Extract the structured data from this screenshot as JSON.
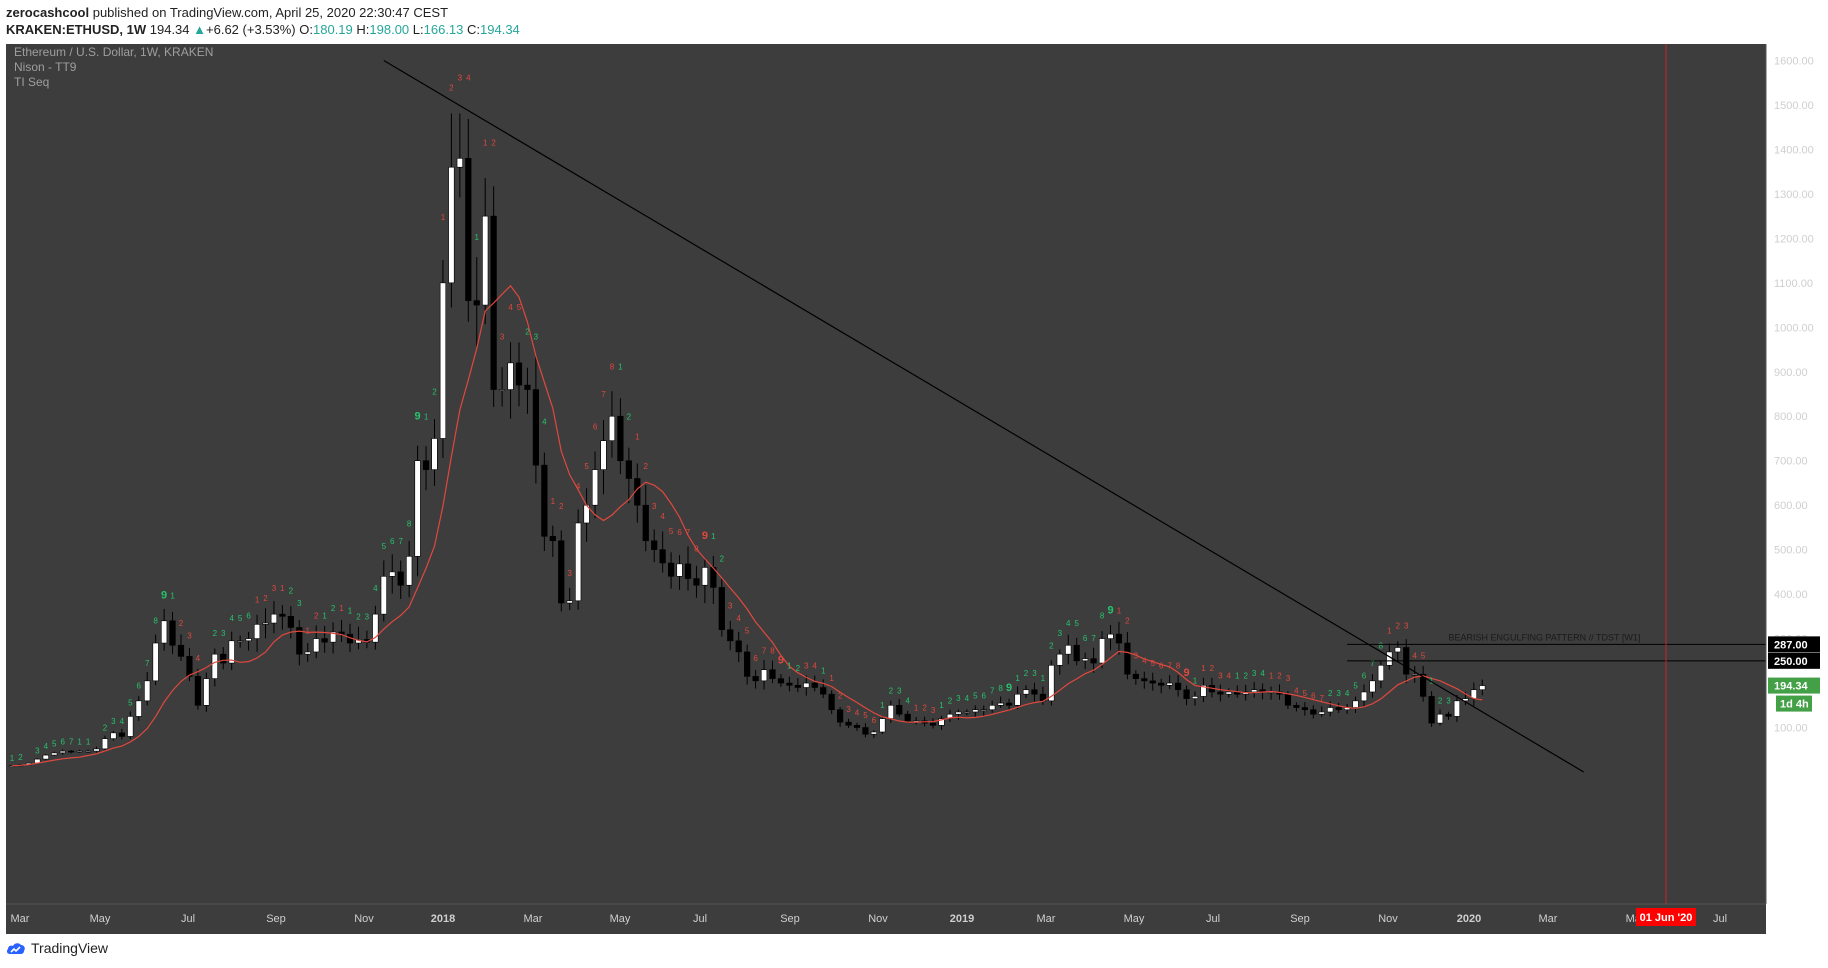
{
  "header": {
    "author": "zerocashcool",
    "published": "published on TradingView.com, April 25, 2020 22:30:47 CEST",
    "symbol": "KRAKEN:ETHUSD, 1W",
    "last": "194.34",
    "change_symbol": "▲",
    "change": "+6.62 (+3.53%)",
    "o_label": "O:",
    "o_value": "180.19",
    "h_label": "H:",
    "h_value": "198.00",
    "l_label": "L:",
    "l_value": "166.13",
    "c_label": "C:",
    "c_value": "194.34"
  },
  "legend": {
    "title": "Ethereum / U.S. Dollar, 1W, KRAKEN",
    "study1": "Nison - TT9",
    "study2": "TI Seq"
  },
  "footer": {
    "brand": "TradingView"
  },
  "colors": {
    "background": "#3d3d3d",
    "up_candle": "#ffffff",
    "down_candle": "#000000",
    "ma_line": "#e0483e",
    "count_green": "#26c26b",
    "count_red": "#e0483e",
    "price_tag": "#43a047",
    "date_tag": "#ff0000"
  },
  "chart_data": {
    "type": "candlestick",
    "title": "Ethereum / U.S. Dollar, 1W, KRAKEN",
    "price_axis": {
      "ticks": [
        "100.00",
        "200.00",
        "300.00",
        "400.00",
        "500.00",
        "600.00",
        "700.00",
        "800.00",
        "900.00",
        "1000.00",
        "1100.00",
        "1200.00",
        "1300.00",
        "1400.00",
        "1500.00",
        "1600.00"
      ],
      "ylim": [
        0,
        1640
      ]
    },
    "time_axis": {
      "ticks": [
        "Mar",
        "May",
        "Jul",
        "Sep",
        "Nov",
        "2018",
        "Mar",
        "May",
        "Jul",
        "Sep",
        "Nov",
        "2019",
        "Mar",
        "May",
        "Jul",
        "Sep",
        "Nov",
        "2020",
        "Mar",
        "May",
        "Jul"
      ],
      "bold": [
        "2018",
        "2019",
        "2020"
      ]
    },
    "closes": [
      14,
      16,
      20,
      29,
      38,
      43,
      47,
      46,
      47,
      47,
      52,
      75,
      88,
      80,
      125,
      160,
      205,
      290,
      340,
      285,
      260,
      215,
      150,
      210,
      265,
      245,
      295,
      295,
      300,
      332,
      335,
      355,
      350,
      325,
      265,
      270,
      300,
      292,
      315,
      310,
      290,
      298,
      292,
      355,
      440,
      450,
      420,
      485,
      700,
      680,
      750,
      1100,
      1360,
      1380,
      1060,
      1050,
      1250,
      860,
      860,
      920,
      870,
      860,
      690,
      530,
      520,
      380,
      385,
      560,
      600,
      680,
      745,
      800,
      700,
      660,
      600,
      520,
      500,
      470,
      440,
      468,
      435,
      420,
      460,
      415,
      320,
      295,
      270,
      215,
      205,
      230,
      210,
      200,
      195,
      190,
      200,
      190,
      175,
      140,
      112,
      105,
      100,
      85,
      90,
      120,
      150,
      130,
      115,
      115,
      110,
      105,
      120,
      130,
      135,
      135,
      140,
      140,
      150,
      155,
      150,
      175,
      185,
      175,
      160,
      240,
      265,
      285,
      250,
      255,
      245,
      300,
      310,
      290,
      220,
      210,
      205,
      200,
      195,
      200,
      185,
      165,
      170,
      195,
      180,
      175,
      180,
      175,
      180,
      185,
      180,
      180,
      175,
      150,
      145,
      140,
      130,
      135,
      145,
      140,
      145,
      160,
      180,
      205,
      240,
      270,
      280,
      220,
      220,
      170,
      110,
      130,
      125,
      160,
      165,
      185,
      194.34
    ],
    "ma_label": "TT9",
    "resistance_line": {
      "from": {
        "week": 44,
        "price": 1600
      },
      "to": {
        "week": 186,
        "price": 0
      }
    },
    "levels": [
      {
        "price": 287.0,
        "label": "287.00"
      },
      {
        "price": 250.0,
        "label": "250.00"
      }
    ],
    "last_price_label": "194.34",
    "timer_label": "1d 4h",
    "annotation": "BEARISH ENGULFING PATTERN // TDST [W1]",
    "event_marker_label": "01 Jun '20",
    "seq_counts": [
      {
        "i": 0,
        "t": "1",
        "c": "g"
      },
      {
        "i": 1,
        "t": "2",
        "c": "g"
      },
      {
        "i": 3,
        "t": "3",
        "c": "g"
      },
      {
        "i": 4,
        "t": "4",
        "c": "g"
      },
      {
        "i": 5,
        "t": "5",
        "c": "g"
      },
      {
        "i": 6,
        "t": "6",
        "c": "g"
      },
      {
        "i": 7,
        "t": "7",
        "c": "g"
      },
      {
        "i": 8,
        "t": "1",
        "c": "g"
      },
      {
        "i": 9,
        "t": "1",
        "c": "g"
      },
      {
        "i": 11,
        "t": "2",
        "c": "g"
      },
      {
        "i": 12,
        "t": "3",
        "c": "g"
      },
      {
        "i": 13,
        "t": "4",
        "c": "g"
      },
      {
        "i": 14,
        "t": "5",
        "c": "g"
      },
      {
        "i": 15,
        "t": "6",
        "c": "g"
      },
      {
        "i": 16,
        "t": "7",
        "c": "g"
      },
      {
        "i": 17,
        "t": "8",
        "c": "g"
      },
      {
        "i": 18,
        "t": "9",
        "c": "g"
      },
      {
        "i": 19,
        "t": "1",
        "c": "g"
      },
      {
        "i": 20,
        "t": "2",
        "c": "r"
      },
      {
        "i": 21,
        "t": "3",
        "c": "r"
      },
      {
        "i": 22,
        "t": "4",
        "c": "r"
      },
      {
        "i": 24,
        "t": "2",
        "c": "g"
      },
      {
        "i": 25,
        "t": "3",
        "c": "g"
      },
      {
        "i": 26,
        "t": "4",
        "c": "g"
      },
      {
        "i": 27,
        "t": "5",
        "c": "g"
      },
      {
        "i": 28,
        "t": "6",
        "c": "g"
      },
      {
        "i": 29,
        "t": "1",
        "c": "r"
      },
      {
        "i": 30,
        "t": "2",
        "c": "r"
      },
      {
        "i": 31,
        "t": "3",
        "c": "r"
      },
      {
        "i": 32,
        "t": "1",
        "c": "r"
      },
      {
        "i": 33,
        "t": "2",
        "c": "g"
      },
      {
        "i": 34,
        "t": "3",
        "c": "g"
      },
      {
        "i": 35,
        "t": "1",
        "c": "r"
      },
      {
        "i": 36,
        "t": "2",
        "c": "r"
      },
      {
        "i": 37,
        "t": "1",
        "c": "g"
      },
      {
        "i": 38,
        "t": "2",
        "c": "g"
      },
      {
        "i": 39,
        "t": "1",
        "c": "r"
      },
      {
        "i": 40,
        "t": "1",
        "c": "g"
      },
      {
        "i": 41,
        "t": "2",
        "c": "g"
      },
      {
        "i": 42,
        "t": "3",
        "c": "g"
      },
      {
        "i": 43,
        "t": "4",
        "c": "g"
      },
      {
        "i": 44,
        "t": "5",
        "c": "g"
      },
      {
        "i": 45,
        "t": "6",
        "c": "g"
      },
      {
        "i": 46,
        "t": "7",
        "c": "g"
      },
      {
        "i": 47,
        "t": "8",
        "c": "g"
      },
      {
        "i": 48,
        "t": "9",
        "c": "g"
      },
      {
        "i": 49,
        "t": "1",
        "c": "g"
      },
      {
        "i": 50,
        "t": "2",
        "c": "g"
      },
      {
        "i": 51,
        "t": "1",
        "c": "r"
      },
      {
        "i": 52,
        "t": "2",
        "c": "r"
      },
      {
        "i": 53,
        "t": "3",
        "c": "r"
      },
      {
        "i": 54,
        "t": "4",
        "c": "r"
      },
      {
        "i": 55,
        "t": "1",
        "c": "g"
      },
      {
        "i": 56,
        "t": "1",
        "c": "r"
      },
      {
        "i": 57,
        "t": "2",
        "c": "r"
      },
      {
        "i": 58,
        "t": "3",
        "c": "r"
      },
      {
        "i": 59,
        "t": "4",
        "c": "r"
      },
      {
        "i": 60,
        "t": "5",
        "c": "r"
      },
      {
        "i": 61,
        "t": "2",
        "c": "g"
      },
      {
        "i": 62,
        "t": "3",
        "c": "g"
      },
      {
        "i": 63,
        "t": "4",
        "c": "g"
      },
      {
        "i": 64,
        "t": "1",
        "c": "r"
      },
      {
        "i": 65,
        "t": "2",
        "c": "r"
      },
      {
        "i": 66,
        "t": "3",
        "c": "r"
      },
      {
        "i": 67,
        "t": "4",
        "c": "r"
      },
      {
        "i": 68,
        "t": "5",
        "c": "r"
      },
      {
        "i": 69,
        "t": "6",
        "c": "r"
      },
      {
        "i": 70,
        "t": "7",
        "c": "r"
      },
      {
        "i": 71,
        "t": "8",
        "c": "r"
      },
      {
        "i": 72,
        "t": "1",
        "c": "g"
      },
      {
        "i": 73,
        "t": "2",
        "c": "g"
      },
      {
        "i": 74,
        "t": "1",
        "c": "r"
      },
      {
        "i": 75,
        "t": "2",
        "c": "r"
      },
      {
        "i": 76,
        "t": "3",
        "c": "r"
      },
      {
        "i": 77,
        "t": "4",
        "c": "r"
      },
      {
        "i": 78,
        "t": "5",
        "c": "r"
      },
      {
        "i": 79,
        "t": "6",
        "c": "r"
      },
      {
        "i": 80,
        "t": "7",
        "c": "r"
      },
      {
        "i": 81,
        "t": "8",
        "c": "r"
      },
      {
        "i": 82,
        "t": "9",
        "c": "r"
      },
      {
        "i": 83,
        "t": "1",
        "c": "g"
      },
      {
        "i": 84,
        "t": "2",
        "c": "g"
      },
      {
        "i": 85,
        "t": "3",
        "c": "r"
      },
      {
        "i": 86,
        "t": "4",
        "c": "r"
      },
      {
        "i": 87,
        "t": "5",
        "c": "r"
      },
      {
        "i": 88,
        "t": "6",
        "c": "r"
      },
      {
        "i": 89,
        "t": "7",
        "c": "r"
      },
      {
        "i": 90,
        "t": "8",
        "c": "r"
      },
      {
        "i": 91,
        "t": "9",
        "c": "r"
      },
      {
        "i": 92,
        "t": "1",
        "c": "g"
      },
      {
        "i": 93,
        "t": "2",
        "c": "g"
      },
      {
        "i": 94,
        "t": "3",
        "c": "r"
      },
      {
        "i": 95,
        "t": "4",
        "c": "r"
      },
      {
        "i": 96,
        "t": "1",
        "c": "g"
      },
      {
        "i": 97,
        "t": "1",
        "c": "r"
      },
      {
        "i": 98,
        "t": "2",
        "c": "r"
      },
      {
        "i": 99,
        "t": "3",
        "c": "r"
      },
      {
        "i": 100,
        "t": "4",
        "c": "r"
      },
      {
        "i": 101,
        "t": "5",
        "c": "r"
      },
      {
        "i": 102,
        "t": "6",
        "c": "r"
      },
      {
        "i": 103,
        "t": "1",
        "c": "g"
      },
      {
        "i": 104,
        "t": "2",
        "c": "g"
      },
      {
        "i": 105,
        "t": "3",
        "c": "g"
      },
      {
        "i": 106,
        "t": "4",
        "c": "g"
      },
      {
        "i": 107,
        "t": "1",
        "c": "r"
      },
      {
        "i": 108,
        "t": "2",
        "c": "r"
      },
      {
        "i": 109,
        "t": "3",
        "c": "r"
      },
      {
        "i": 110,
        "t": "1",
        "c": "g"
      },
      {
        "i": 111,
        "t": "2",
        "c": "g"
      },
      {
        "i": 112,
        "t": "3",
        "c": "g"
      },
      {
        "i": 113,
        "t": "4",
        "c": "g"
      },
      {
        "i": 114,
        "t": "5",
        "c": "g"
      },
      {
        "i": 115,
        "t": "6",
        "c": "g"
      },
      {
        "i": 116,
        "t": "7",
        "c": "g"
      },
      {
        "i": 117,
        "t": "8",
        "c": "g"
      },
      {
        "i": 118,
        "t": "9",
        "c": "g"
      },
      {
        "i": 119,
        "t": "1",
        "c": "g"
      },
      {
        "i": 120,
        "t": "2",
        "c": "g"
      },
      {
        "i": 121,
        "t": "3",
        "c": "g"
      },
      {
        "i": 122,
        "t": "1",
        "c": "g"
      },
      {
        "i": 123,
        "t": "2",
        "c": "g"
      },
      {
        "i": 124,
        "t": "3",
        "c": "g"
      },
      {
        "i": 125,
        "t": "4",
        "c": "g"
      },
      {
        "i": 126,
        "t": "5",
        "c": "g"
      },
      {
        "i": 127,
        "t": "6",
        "c": "g"
      },
      {
        "i": 128,
        "t": "7",
        "c": "g"
      },
      {
        "i": 129,
        "t": "8",
        "c": "g"
      },
      {
        "i": 130,
        "t": "9",
        "c": "g"
      },
      {
        "i": 131,
        "t": "1",
        "c": "r"
      },
      {
        "i": 132,
        "t": "2",
        "c": "r"
      },
      {
        "i": 133,
        "t": "3",
        "c": "r"
      },
      {
        "i": 134,
        "t": "4",
        "c": "r"
      },
      {
        "i": 135,
        "t": "5",
        "c": "r"
      },
      {
        "i": 136,
        "t": "6",
        "c": "r"
      },
      {
        "i": 137,
        "t": "7",
        "c": "r"
      },
      {
        "i": 138,
        "t": "8",
        "c": "r"
      },
      {
        "i": 139,
        "t": "9",
        "c": "r"
      },
      {
        "i": 140,
        "t": "1",
        "c": "g"
      },
      {
        "i": 141,
        "t": "1",
        "c": "r"
      },
      {
        "i": 142,
        "t": "2",
        "c": "r"
      },
      {
        "i": 143,
        "t": "3",
        "c": "r"
      },
      {
        "i": 144,
        "t": "4",
        "c": "r"
      },
      {
        "i": 145,
        "t": "1",
        "c": "g"
      },
      {
        "i": 146,
        "t": "2",
        "c": "g"
      },
      {
        "i": 147,
        "t": "3",
        "c": "g"
      },
      {
        "i": 148,
        "t": "4",
        "c": "g"
      },
      {
        "i": 149,
        "t": "1",
        "c": "r"
      },
      {
        "i": 150,
        "t": "2",
        "c": "r"
      },
      {
        "i": 151,
        "t": "3",
        "c": "r"
      },
      {
        "i": 152,
        "t": "4",
        "c": "r"
      },
      {
        "i": 153,
        "t": "5",
        "c": "r"
      },
      {
        "i": 154,
        "t": "6",
        "c": "r"
      },
      {
        "i": 155,
        "t": "7",
        "c": "r"
      },
      {
        "i": 156,
        "t": "2",
        "c": "g"
      },
      {
        "i": 157,
        "t": "3",
        "c": "g"
      },
      {
        "i": 158,
        "t": "4",
        "c": "g"
      },
      {
        "i": 159,
        "t": "5",
        "c": "g"
      },
      {
        "i": 160,
        "t": "6",
        "c": "g"
      },
      {
        "i": 161,
        "t": "7",
        "c": "g"
      },
      {
        "i": 162,
        "t": "8",
        "c": "g"
      },
      {
        "i": 163,
        "t": "1",
        "c": "r"
      },
      {
        "i": 164,
        "t": "2",
        "c": "r"
      },
      {
        "i": 165,
        "t": "3",
        "c": "r"
      },
      {
        "i": 166,
        "t": "4",
        "c": "r"
      },
      {
        "i": 167,
        "t": "5",
        "c": "r"
      },
      {
        "i": 168,
        "t": "1",
        "c": "g"
      },
      {
        "i": 169,
        "t": "2",
        "c": "g"
      },
      {
        "i": 170,
        "t": "3",
        "c": "g"
      }
    ]
  }
}
